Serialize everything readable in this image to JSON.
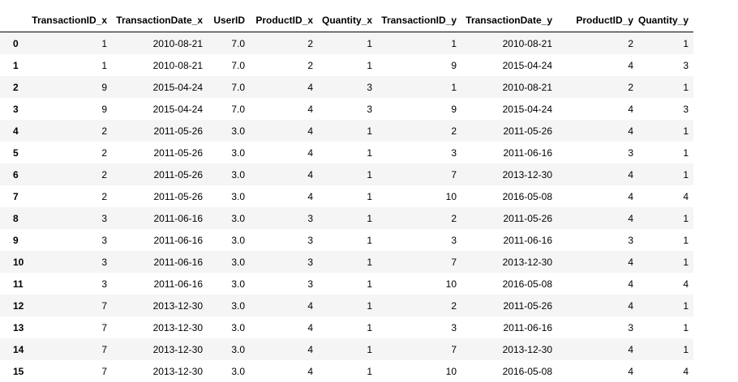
{
  "table": {
    "headers": [
      "",
      "TransactionID_x",
      "TransactionDate_x",
      "UserID",
      "ProductID_x",
      "Quantity_x",
      "TransactionID_y",
      "TransactionDate_y",
      "ProductID_y",
      "Quantity_y"
    ],
    "rows": [
      [
        "0",
        "1",
        "2010-08-21",
        "7.0",
        "2",
        "1",
        "1",
        "2010-08-21",
        "2",
        "1"
      ],
      [
        "1",
        "1",
        "2010-08-21",
        "7.0",
        "2",
        "1",
        "9",
        "2015-04-24",
        "4",
        "3"
      ],
      [
        "2",
        "9",
        "2015-04-24",
        "7.0",
        "4",
        "3",
        "1",
        "2010-08-21",
        "2",
        "1"
      ],
      [
        "3",
        "9",
        "2015-04-24",
        "7.0",
        "4",
        "3",
        "9",
        "2015-04-24",
        "4",
        "3"
      ],
      [
        "4",
        "2",
        "2011-05-26",
        "3.0",
        "4",
        "1",
        "2",
        "2011-05-26",
        "4",
        "1"
      ],
      [
        "5",
        "2",
        "2011-05-26",
        "3.0",
        "4",
        "1",
        "3",
        "2011-06-16",
        "3",
        "1"
      ],
      [
        "6",
        "2",
        "2011-05-26",
        "3.0",
        "4",
        "1",
        "7",
        "2013-12-30",
        "4",
        "1"
      ],
      [
        "7",
        "2",
        "2011-05-26",
        "3.0",
        "4",
        "1",
        "10",
        "2016-05-08",
        "4",
        "4"
      ],
      [
        "8",
        "3",
        "2011-06-16",
        "3.0",
        "3",
        "1",
        "2",
        "2011-05-26",
        "4",
        "1"
      ],
      [
        "9",
        "3",
        "2011-06-16",
        "3.0",
        "3",
        "1",
        "3",
        "2011-06-16",
        "3",
        "1"
      ],
      [
        "10",
        "3",
        "2011-06-16",
        "3.0",
        "3",
        "1",
        "7",
        "2013-12-30",
        "4",
        "1"
      ],
      [
        "11",
        "3",
        "2011-06-16",
        "3.0",
        "3",
        "1",
        "10",
        "2016-05-08",
        "4",
        "4"
      ],
      [
        "12",
        "7",
        "2013-12-30",
        "3.0",
        "4",
        "1",
        "2",
        "2011-05-26",
        "4",
        "1"
      ],
      [
        "13",
        "7",
        "2013-12-30",
        "3.0",
        "4",
        "1",
        "3",
        "2011-06-16",
        "3",
        "1"
      ],
      [
        "14",
        "7",
        "2013-12-30",
        "3.0",
        "4",
        "1",
        "7",
        "2013-12-30",
        "4",
        "1"
      ],
      [
        "15",
        "7",
        "2013-12-30",
        "3.0",
        "4",
        "1",
        "10",
        "2016-05-08",
        "4",
        "4"
      ]
    ]
  }
}
